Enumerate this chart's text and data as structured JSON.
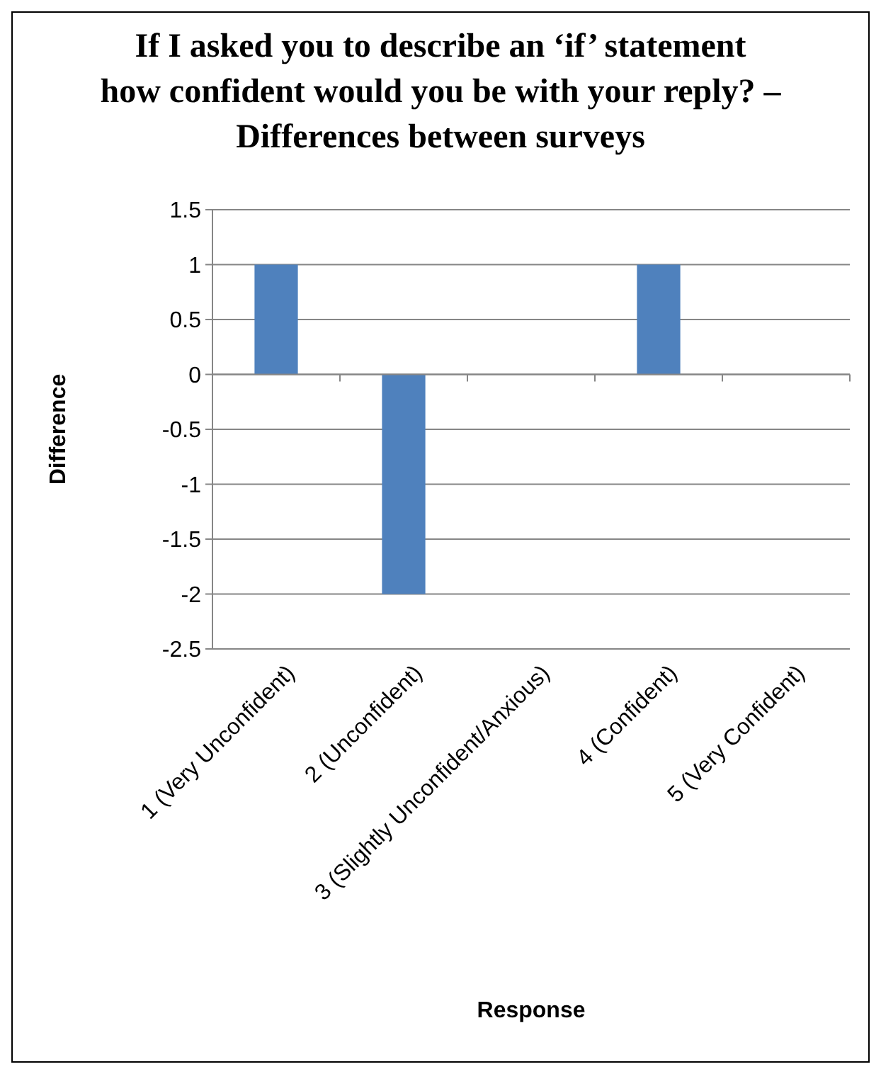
{
  "chart_data": {
    "type": "bar",
    "title": "If I asked you to describe an ‘if’ statement how confident would you be with your reply? – Differences between surveys",
    "xlabel": "Response",
    "ylabel": "Difference",
    "categories": [
      "1 (Very Unconfident)",
      "2 (Unconfident)",
      "3 (Slightly Unconfident/Anxious)",
      "4 (Confident)",
      "5 (Very Confident)"
    ],
    "values": [
      1,
      -2,
      0,
      1,
      0
    ],
    "color": "#4f81bd",
    "ylim": [
      -2.5,
      1.5
    ],
    "yticks": [
      -2.5,
      -2,
      -1.5,
      -1,
      -0.5,
      0,
      0.5,
      1,
      1.5
    ],
    "grid": "y"
  }
}
